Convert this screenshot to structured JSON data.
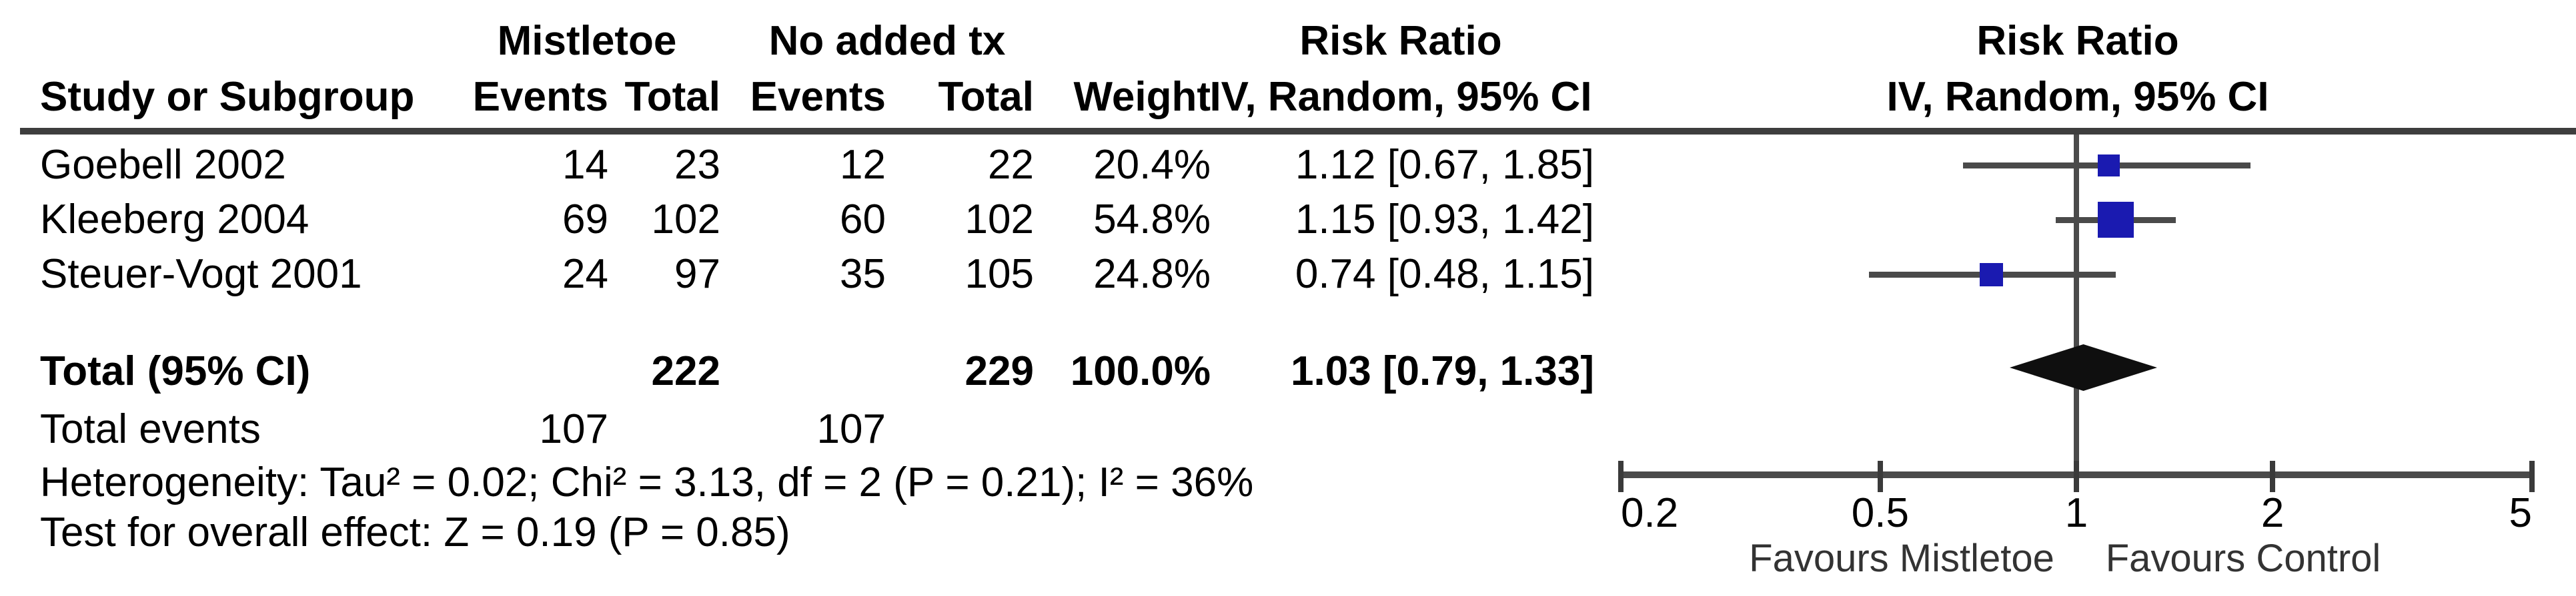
{
  "header": {
    "study": "Study or Subgroup",
    "group1": "Mistletoe",
    "group2": "No added tx",
    "events": "Events",
    "total": "Total",
    "weight": "Weight",
    "rr_line1": "Risk Ratio",
    "rr_line2": "IV, Random, 95% CI"
  },
  "studies": [
    {
      "name": "Goebell 2002",
      "events1": "14",
      "total1": "23",
      "events2": "12",
      "total2": "22",
      "weight": "20.4%",
      "rr_text": "1.12 [0.67, 1.85]"
    },
    {
      "name": "Kleeberg 2004",
      "events1": "69",
      "total1": "102",
      "events2": "60",
      "total2": "102",
      "weight": "54.8%",
      "rr_text": "1.15 [0.93, 1.42]"
    },
    {
      "name": "Steuer-Vogt 2001",
      "events1": "24",
      "total1": "97",
      "events2": "35",
      "total2": "105",
      "weight": "24.8%",
      "rr_text": "0.74 [0.48, 1.15]"
    }
  ],
  "totals": {
    "label": "Total (95% CI)",
    "total1": "222",
    "total2": "229",
    "weight": "100.0%",
    "rr_text": "1.03 [0.79, 1.33]",
    "events_label": "Total events",
    "events1": "107",
    "events2": "107"
  },
  "footnotes": {
    "heterogeneity": "Heterogeneity: Tau² = 0.02; Chi² = 3.13, df = 2 (P = 0.21); I² = 36%",
    "overall_effect": "Test for overall effect: Z = 0.19 (P = 0.85)"
  },
  "axis": {
    "tick_labels": [
      "0.2",
      "0.5",
      "1",
      "2",
      "5"
    ],
    "favours_left": "Favours Mistletoe",
    "favours_right": "Favours Control"
  },
  "colors": {
    "square_blue": "#1a1ab0",
    "ci_line_gray": "#4a4a4a",
    "diamond_black": "#0f0f0f",
    "rule_gray": "#3e3e3e",
    "text": "#000000"
  },
  "chart_data": {
    "type": "forest",
    "effect_measure": "Risk Ratio",
    "model": "IV, Random, 95% CI",
    "x_scale": "log",
    "xlim": [
      0.2,
      5
    ],
    "x_ticks": [
      0.2,
      0.5,
      1,
      2,
      5
    ],
    "null_line": 1,
    "studies": [
      {
        "label": "Goebell 2002",
        "rr": 1.12,
        "ci_low": 0.67,
        "ci_high": 1.85,
        "weight_pct": 20.4
      },
      {
        "label": "Kleeberg 2004",
        "rr": 1.15,
        "ci_low": 0.93,
        "ci_high": 1.42,
        "weight_pct": 54.8
      },
      {
        "label": "Steuer-Vogt 2001",
        "rr": 0.74,
        "ci_low": 0.48,
        "ci_high": 1.15,
        "weight_pct": 24.8
      }
    ],
    "total": {
      "label": "Total (95% CI)",
      "rr": 1.03,
      "ci_low": 0.79,
      "ci_high": 1.33
    },
    "footnote_left": "Favours Mistletoe",
    "footnote_right": "Favours Control"
  }
}
